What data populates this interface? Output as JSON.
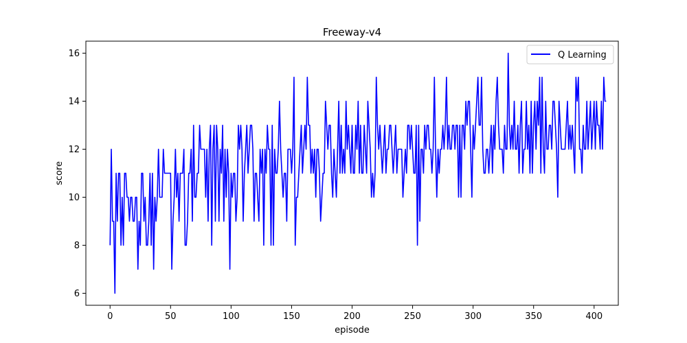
{
  "chart_data": {
    "type": "line",
    "title": "Freeway-v4",
    "xlabel": "episode",
    "ylabel": "score",
    "xlim": [
      -20,
      420
    ],
    "ylim": [
      5.5,
      16.5
    ],
    "xticks": [
      0,
      50,
      100,
      150,
      200,
      250,
      300,
      350,
      400
    ],
    "yticks": [
      6,
      8,
      10,
      12,
      14,
      16
    ],
    "grid": false,
    "legend_position": "top-right",
    "series": [
      {
        "name": "Q Learning",
        "color": "#0000ff",
        "x_start": 0,
        "x_step": 1,
        "values": [
          8,
          12,
          9,
          9,
          6,
          11,
          9,
          11,
          11,
          8,
          10,
          8,
          11,
          11,
          10,
          10,
          9,
          10,
          10,
          9,
          9,
          10,
          10,
          7,
          9,
          8,
          11,
          11,
          9,
          10,
          8,
          8,
          9,
          11,
          8,
          11,
          7,
          10,
          9,
          10,
          12,
          10,
          10,
          10,
          12,
          11,
          11,
          11,
          11,
          11,
          11,
          7,
          9,
          10,
          12,
          10,
          11,
          9,
          11,
          11,
          11,
          12,
          8,
          8,
          9,
          11,
          11,
          12,
          9,
          13,
          10,
          10,
          11,
          11,
          13,
          12,
          12,
          12,
          12,
          10,
          12,
          9,
          12,
          13,
          8,
          12,
          13,
          9,
          13,
          12,
          9,
          12,
          11,
          13,
          9,
          12,
          10,
          12,
          11,
          7,
          11,
          10,
          11,
          11,
          9,
          10,
          13,
          12,
          13,
          12,
          9,
          11,
          12,
          13,
          11,
          12,
          13,
          13,
          12,
          9,
          11,
          11,
          10,
          9,
          12,
          11,
          12,
          8,
          12,
          11,
          13,
          12,
          12,
          8,
          13,
          8,
          12,
          11,
          11,
          12,
          14,
          12,
          11,
          10,
          11,
          11,
          9,
          12,
          12,
          12,
          11,
          12,
          15,
          8,
          10,
          10,
          11,
          12,
          13,
          11,
          12,
          13,
          12,
          15,
          13,
          13,
          11,
          12,
          11,
          12,
          10,
          12,
          12,
          11,
          9,
          10,
          11,
          11,
          14,
          13,
          12,
          13,
          13,
          11,
          10,
          12,
          11,
          10,
          12,
          14,
          11,
          13,
          11,
          12,
          11,
          14,
          12,
          13,
          12,
          11,
          13,
          11,
          11,
          13,
          12,
          14,
          11,
          13,
          11,
          11,
          13,
          12,
          11,
          14,
          13,
          12,
          10,
          11,
          10,
          11,
          15,
          13,
          12,
          13,
          12,
          11,
          12,
          13,
          11,
          12,
          12,
          13,
          13,
          12,
          11,
          12,
          13,
          11,
          12,
          12,
          12,
          12,
          10,
          11,
          12,
          11,
          13,
          13,
          12,
          13,
          12,
          11,
          11,
          13,
          8,
          13,
          9,
          12,
          12,
          11,
          13,
          12,
          13,
          13,
          12,
          12,
          11,
          12,
          15,
          12,
          10,
          12,
          11,
          12,
          12,
          13,
          12,
          13,
          15,
          12,
          13,
          12,
          12,
          13,
          13,
          12,
          13,
          13,
          10,
          13,
          10,
          13,
          13,
          12,
          14,
          13,
          14,
          14,
          12,
          10,
          13,
          12,
          13,
          14,
          15,
          13,
          13,
          15,
          12,
          11,
          11,
          12,
          12,
          11,
          12,
          13,
          11,
          13,
          12,
          14,
          15,
          13,
          12,
          12,
          12,
          11,
          13,
          12,
          12,
          16,
          13,
          12,
          13,
          12,
          14,
          12,
          12,
          13,
          11,
          13,
          14,
          11,
          12,
          12,
          14,
          12,
          13,
          11,
          14,
          11,
          13,
          14,
          12,
          14,
          13,
          15,
          11,
          15,
          12,
          11,
          14,
          12,
          12,
          13,
          13,
          12,
          14,
          14,
          13,
          12,
          10,
          14,
          13,
          12,
          12,
          12,
          12,
          13,
          14,
          12,
          13,
          12,
          13,
          12,
          11,
          15,
          14,
          15,
          12,
          12,
          11,
          13,
          12,
          12,
          14,
          12,
          13,
          14,
          12,
          13,
          14,
          12,
          14,
          13,
          13,
          12,
          14,
          12,
          15,
          14,
          14
        ]
      }
    ]
  }
}
